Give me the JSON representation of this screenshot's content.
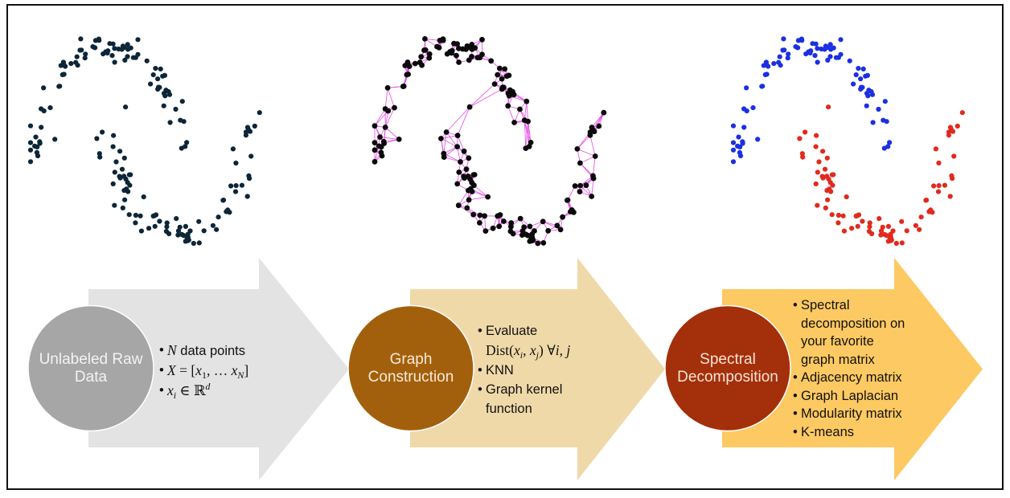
{
  "colors": {
    "raw_points": "#0c2638",
    "graph_nodes": "#0a0a0a",
    "graph_edges": "#e23fe2",
    "cluster_a": "#1b30e0",
    "cluster_b": "#e12a1d",
    "frame": "#111111"
  },
  "steps": [
    {
      "label": "Unlabeled Raw Data",
      "arrow_color": "#e3e3e3",
      "circle_color": "#a6a6a6",
      "bullets": [
        {
          "lines": [
            [
              {
                "var": "N"
              },
              {
                "text": " data points"
              }
            ]
          ]
        },
        {
          "lines": [
            [
              {
                "var": "X"
              },
              {
                "math": " = ["
              },
              {
                "var": "x"
              },
              {
                "sub": "1"
              },
              {
                "math": ", … "
              },
              {
                "var": "x"
              },
              {
                "subvar": "N"
              },
              {
                "math": "]"
              }
            ]
          ]
        },
        {
          "lines": [
            [
              {
                "var": "x"
              },
              {
                "subvar": "i"
              },
              {
                "math": " ∈ ℝ"
              },
              {
                "supvar": "d"
              }
            ]
          ]
        }
      ]
    },
    {
      "label": "Graph Construction",
      "arrow_color": "#f0d9a9",
      "circle_color": "#a3600c",
      "bullets": [
        {
          "lines": [
            [
              {
                "text": "Evaluate"
              }
            ],
            [
              {
                "math": "Dist("
              },
              {
                "var": "x"
              },
              {
                "subvar": "i"
              },
              {
                "math": ", "
              },
              {
                "var": "x"
              },
              {
                "subvar": "j"
              },
              {
                "math": ") ∀"
              },
              {
                "var": "i"
              },
              {
                "math": ", "
              },
              {
                "var": "j"
              }
            ]
          ]
        },
        {
          "lines": [
            [
              {
                "text": "KNN"
              }
            ]
          ]
        },
        {
          "lines": [
            [
              {
                "text": "Graph kernel"
              }
            ],
            [
              {
                "text": "function"
              }
            ]
          ]
        }
      ]
    },
    {
      "label": "Spectral Decomposition",
      "arrow_color": "#fdc962",
      "circle_color": "#a3300b",
      "bullets": [
        {
          "lines": [
            [
              {
                "text": "Spectral"
              }
            ],
            [
              {
                "text": "decomposition on"
              }
            ],
            [
              {
                "text": "your favorite"
              }
            ],
            [
              {
                "text": "graph matrix"
              }
            ]
          ]
        },
        {
          "lines": [
            [
              {
                "text": "Adjacency matrix"
              }
            ]
          ]
        },
        {
          "lines": [
            [
              {
                "text": "Graph Laplacian"
              }
            ]
          ]
        },
        {
          "lines": [
            [
              {
                "text": "Modularity matrix"
              }
            ]
          ]
        },
        {
          "lines": [
            [
              {
                "text": "K-means"
              }
            ]
          ]
        }
      ]
    }
  ]
}
